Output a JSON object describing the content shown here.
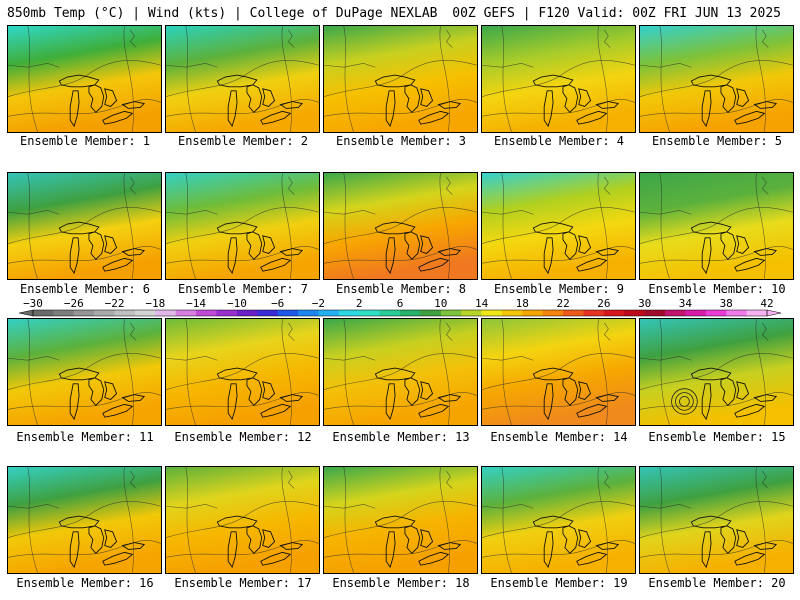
{
  "header": {
    "left": "850mb Temp (°C) | Wind (kts) | College of DuPage NEXLAB",
    "right": "00Z GEFS | F120 Valid: 00Z FRI JUN 13 2025"
  },
  "panels": [
    {
      "label": "Ensemble Member: 1",
      "north": "#2fd8c8",
      "mid": "#3fae3a",
      "south": "#f4c60a",
      "far_south": "#f4a000"
    },
    {
      "label": "Ensemble Member: 2",
      "north": "#2bd2bd",
      "mid": "#5cb13c",
      "south": "#f0d010",
      "far_south": "#f6a800"
    },
    {
      "label": "Ensemble Member: 3",
      "north": "#3aa84a",
      "mid": "#c8d020",
      "south": "#f6c000",
      "far_south": "#f7a600"
    },
    {
      "label": "Ensemble Member: 4",
      "north": "#3aa84a",
      "mid": "#a8cc2a",
      "south": "#f4d410",
      "far_south": "#f5b000"
    },
    {
      "label": "Ensemble Member: 5",
      "north": "#34d0d0",
      "mid": "#7cc23a",
      "south": "#f2c808",
      "far_south": "#f6a200"
    },
    {
      "label": "Ensemble Member: 6",
      "north": "#34c4b8",
      "mid": "#3fa040",
      "south": "#f4d010",
      "far_south": "#f6a000"
    },
    {
      "label": "Ensemble Member: 7",
      "north": "#34d0c4",
      "mid": "#6ebc3a",
      "south": "#f0d010",
      "far_south": "#f6a400"
    },
    {
      "label": "Ensemble Member: 8",
      "north": "#3aa84a",
      "mid": "#d4d41c",
      "south": "#f8a600",
      "far_south": "#f07820"
    },
    {
      "label": "Ensemble Member: 9",
      "north": "#34d0d0",
      "mid": "#b0d020",
      "south": "#f4d810",
      "far_south": "#f6b000"
    },
    {
      "label": "Ensemble Member: 10",
      "north": "#3ca64a",
      "mid": "#5cb13c",
      "south": "#e8dc1c",
      "far_south": "#f4c000"
    },
    {
      "label": "Ensemble Member: 11",
      "north": "#34d0c4",
      "mid": "#5cb13c",
      "south": "#f2c808",
      "far_south": "#f6a400"
    },
    {
      "label": "Ensemble Member: 12",
      "north": "#6ebc3a",
      "mid": "#e8d41c",
      "south": "#f6b800",
      "far_south": "#f6a000"
    },
    {
      "label": "Ensemble Member: 13",
      "north": "#3aa84a",
      "mid": "#c8d020",
      "south": "#f4c008",
      "far_south": "#f6a400"
    },
    {
      "label": "Ensemble Member: 14",
      "north": "#8cc63a",
      "mid": "#f4d410",
      "south": "#f6a800",
      "far_south": "#f08a1c"
    },
    {
      "label": "Ensemble Member: 15",
      "north": "#34c4b8",
      "mid": "#3fa040",
      "south": "#c8d020",
      "far_south": "#f4c000"
    },
    {
      "label": "Ensemble Member: 16",
      "north": "#34d0c4",
      "mid": "#3fa040",
      "south": "#f2c808",
      "far_south": "#f6a400"
    },
    {
      "label": "Ensemble Member: 17",
      "north": "#5cb13c",
      "mid": "#e0d41c",
      "south": "#f6b800",
      "far_south": "#f6a000"
    },
    {
      "label": "Ensemble Member: 18",
      "north": "#3aa84a",
      "mid": "#d4d41c",
      "south": "#f6b400",
      "far_south": "#f6a000"
    },
    {
      "label": "Ensemble Member: 19",
      "north": "#34d0c4",
      "mid": "#5cb13c",
      "south": "#f0d010",
      "far_south": "#f6b000"
    },
    {
      "label": "Ensemble Member: 20",
      "north": "#34c4b8",
      "mid": "#3fa040",
      "south": "#e0d41c",
      "far_south": "#f6b000"
    }
  ],
  "colorbar": {
    "labels": [
      "−30",
      "−26",
      "−22",
      "−18",
      "−14",
      "−10",
      "−6",
      "−2",
      "2",
      "6",
      "10",
      "14",
      "18",
      "22",
      "26",
      "30",
      "34",
      "38",
      "42"
    ],
    "colors": [
      "#6b6b6b",
      "#7e7e7e",
      "#959595",
      "#aaaaaa",
      "#c0c0c0",
      "#d4d4d4",
      "#e0b8ec",
      "#d77ee0",
      "#c04ad8",
      "#9a2fd0",
      "#6a1fc8",
      "#3a2ad8",
      "#1e58e8",
      "#1e86f0",
      "#22b0f2",
      "#2cd8e4",
      "#2fdfc4",
      "#2acd98",
      "#27b26a",
      "#3fa040",
      "#7cc23a",
      "#b6d42a",
      "#f0e818",
      "#f4c60a",
      "#f6a600",
      "#f4840e",
      "#ee5a1c",
      "#e63222",
      "#d8161e",
      "#bc0a1c",
      "#a00a2a",
      "#c2146e",
      "#d81ca8",
      "#e83cd4",
      "#f07ae8",
      "#f6b2f0"
    ]
  }
}
